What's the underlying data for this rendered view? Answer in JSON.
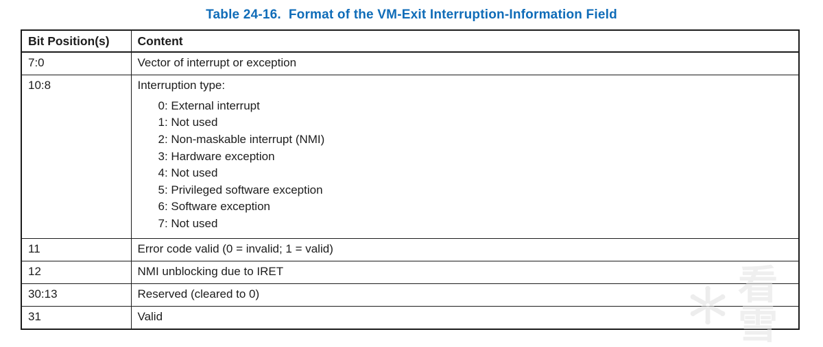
{
  "title": "Table 24-16.  Format of the VM-Exit Interruption-Information Field",
  "table": {
    "columns": [
      "Bit Position(s)",
      "Content"
    ],
    "rows": [
      {
        "bits": "7:0",
        "content": "Vector of interrupt or exception"
      },
      {
        "bits": "10:8",
        "content": "Interruption type:",
        "sub_items": [
          "0: External interrupt",
          "1: Not used",
          "2: Non-maskable interrupt (NMI)",
          "3: Hardware exception",
          "4: Not used",
          "5: Privileged software exception",
          "6: Software exception",
          "7: Not used"
        ]
      },
      {
        "bits": "11",
        "content": "Error code valid (0 = invalid; 1 = valid)"
      },
      {
        "bits": "12",
        "content": "NMI unblocking due to IRET"
      },
      {
        "bits": "30:13",
        "content": "Reserved (cleared to 0)"
      },
      {
        "bits": "31",
        "content": "Valid"
      }
    ]
  },
  "watermark": {
    "text": "看雪"
  },
  "colors": {
    "title_blue": "#0f6cb8",
    "border": "#1a1a1a",
    "text": "#1c1c1c",
    "watermark_gray": "#e2e2e2"
  }
}
